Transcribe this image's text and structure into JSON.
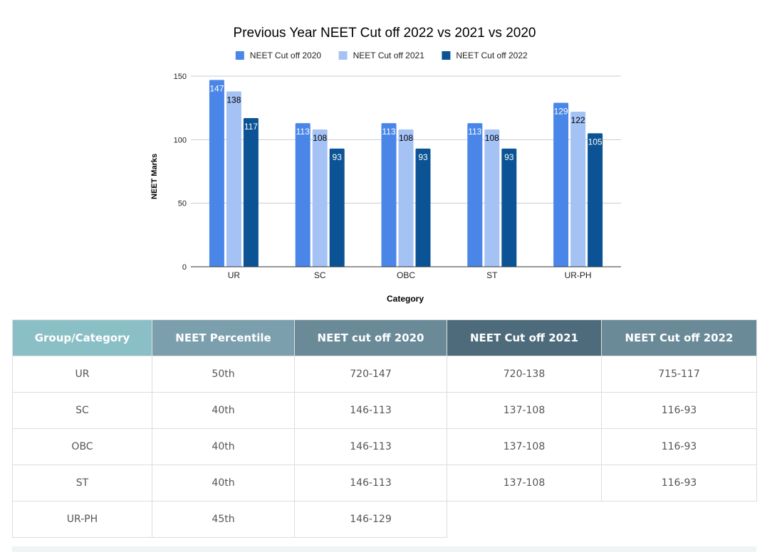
{
  "chart_data": {
    "type": "bar",
    "title": "Previous Year NEET Cut off 2022 vs 2021 vs 2020",
    "xlabel": "Category",
    "ylabel": "NEET Marks",
    "ylim": [
      0,
      150
    ],
    "yticks": [
      0,
      50,
      100,
      150
    ],
    "grid": true,
    "legend_position": "top",
    "categories": [
      "UR",
      "SC",
      "OBC",
      "ST",
      "UR-PH"
    ],
    "series": [
      {
        "name": "NEET Cut off 2020",
        "color": "#4a86e8",
        "label_color": "#ffffff",
        "values": [
          147,
          113,
          113,
          113,
          129
        ]
      },
      {
        "name": "NEET Cut off 2021",
        "color": "#a4c2f4",
        "label_color": "#000000",
        "values": [
          138,
          108,
          108,
          108,
          122
        ]
      },
      {
        "name": "NEET Cut off 2022",
        "color": "#0b5394",
        "label_color": "#ffffff",
        "values": [
          117,
          93,
          93,
          93,
          105
        ]
      }
    ]
  },
  "table": {
    "headers": [
      "Group/Category",
      "NEET Percentile",
      "NEET cut off 2020",
      "NEET Cut off 2021",
      "NEET Cut off 2022"
    ],
    "header_colors": [
      "#8bbfc6",
      "#7c9fae",
      "#6a8a98",
      "#4d6b7b",
      "#6a8a98"
    ],
    "rows": [
      [
        "UR",
        "50th",
        "720-147",
        "720-138",
        "715-117"
      ],
      [
        "SC",
        "40th",
        "146-113",
        "137-108",
        "116-93"
      ],
      [
        "OBC",
        "40th",
        "146-113",
        "137-108",
        "116-93"
      ],
      [
        "ST",
        "40th",
        "146-113",
        "137-108",
        "116-93"
      ],
      [
        "UR-PH",
        "45th",
        "146-129",
        "",
        ""
      ]
    ]
  }
}
